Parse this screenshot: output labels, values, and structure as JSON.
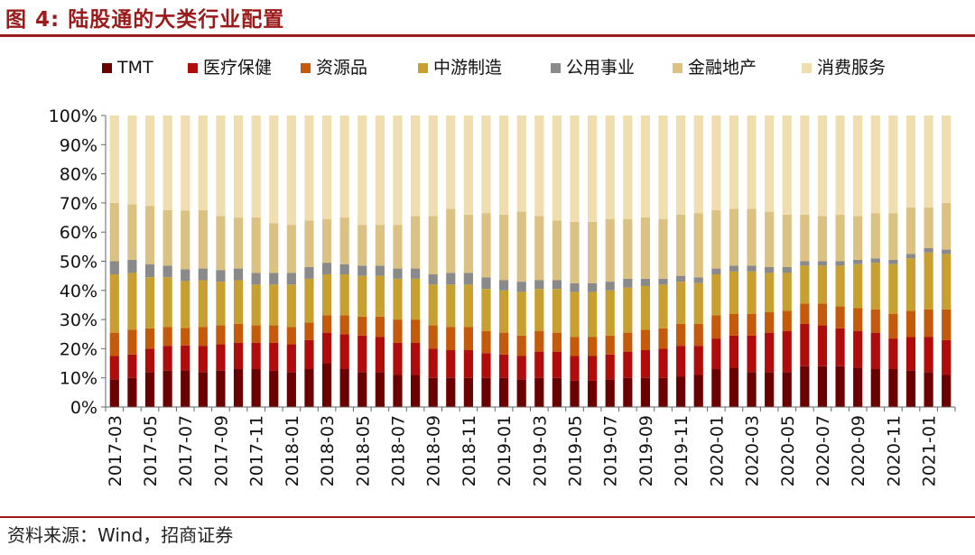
{
  "title": "图 4:  陆股通的大类行业配置",
  "source": "资料来源：Wind，招商证券",
  "chart_data": {
    "type": "bar",
    "stacked": true,
    "percent": true,
    "ylim": [
      0,
      100
    ],
    "yticks": [
      "0%",
      "10%",
      "20%",
      "30%",
      "40%",
      "50%",
      "60%",
      "70%",
      "80%",
      "90%",
      "100%"
    ],
    "legend_position": "top",
    "categories": [
      "2017-03",
      "2017-04",
      "2017-05",
      "2017-06",
      "2017-07",
      "2017-08",
      "2017-09",
      "2017-10",
      "2017-11",
      "2017-12",
      "2018-01",
      "2018-02",
      "2018-03",
      "2018-04",
      "2018-05",
      "2018-06",
      "2018-07",
      "2018-08",
      "2018-09",
      "2018-10",
      "2018-11",
      "2018-12",
      "2019-01",
      "2019-02",
      "2019-03",
      "2019-04",
      "2019-05",
      "2019-06",
      "2019-07",
      "2019-08",
      "2019-09",
      "2019-10",
      "2019-11",
      "2019-12",
      "2020-01",
      "2020-02",
      "2020-03",
      "2020-04",
      "2020-05",
      "2020-06",
      "2020-07",
      "2020-08",
      "2020-09",
      "2020-10",
      "2020-11",
      "2020-12",
      "2021-01",
      "2021-02"
    ],
    "xtick_labels": [
      "2017-03",
      "",
      "2017-05",
      "",
      "2017-07",
      "",
      "2017-09",
      "",
      "2017-11",
      "",
      "2018-01",
      "",
      "2018-03",
      "",
      "2018-05",
      "",
      "2018-07",
      "",
      "2018-09",
      "",
      "2018-11",
      "",
      "2019-01",
      "",
      "2019-03",
      "",
      "2019-05",
      "",
      "2019-07",
      "",
      "2019-09",
      "",
      "2019-11",
      "",
      "2020-01",
      "",
      "2020-03",
      "",
      "2020-05",
      "",
      "2020-07",
      "",
      "2020-09",
      "",
      "2020-11",
      "",
      "2021-01",
      ""
    ],
    "series": [
      {
        "name": "TMT",
        "color": "#6b0000",
        "values": [
          9.5,
          10,
          12,
          12.5,
          12.5,
          12,
          12.5,
          13,
          13,
          12.5,
          12,
          13,
          15,
          13,
          12,
          12,
          11,
          11,
          10,
          10,
          10,
          10,
          10,
          9.5,
          10,
          10,
          9,
          9,
          9.5,
          10,
          10,
          10,
          10.5,
          11,
          13,
          13.5,
          12,
          12,
          12,
          14,
          14,
          14,
          13.5,
          13,
          13,
          12.5,
          12,
          11
        ]
      },
      {
        "name": "医疗保健",
        "color": "#b00c0c",
        "values": [
          8,
          8,
          8,
          8.5,
          8.5,
          9,
          9,
          9,
          9,
          9.5,
          9.5,
          10,
          10.5,
          12,
          12.5,
          12,
          11,
          11,
          10,
          9.5,
          9.5,
          8.5,
          8,
          8,
          9,
          9,
          8.5,
          8.5,
          8.5,
          9,
          9.5,
          10,
          10.5,
          10,
          10.5,
          11,
          12.5,
          13.5,
          14,
          14.5,
          14,
          13,
          12.5,
          12.5,
          10.5,
          11.5,
          12,
          12
        ]
      },
      {
        "name": "资源品",
        "color": "#c55a0a",
        "values": [
          8,
          8.5,
          7,
          6.5,
          6,
          6.5,
          6.5,
          6.5,
          6,
          6,
          6,
          6,
          6,
          6.5,
          6.5,
          7,
          8,
          8,
          8,
          8,
          8,
          7.5,
          7.5,
          7,
          7,
          6.5,
          6.5,
          6.5,
          6.5,
          6.5,
          7,
          7,
          7.5,
          7.5,
          8,
          7.5,
          7.5,
          7,
          7,
          7,
          7.5,
          7.5,
          8,
          8,
          8.5,
          9,
          9.5,
          10.5
        ]
      },
      {
        "name": "中游制造",
        "color": "#c8a030",
        "values": [
          20,
          19.5,
          17.5,
          17,
          16,
          16,
          15,
          15,
          14,
          14,
          14.5,
          15,
          14,
          14,
          14,
          14,
          14,
          14,
          14,
          14.5,
          14.5,
          14.5,
          14.5,
          15,
          14.5,
          15,
          15.5,
          15.5,
          15.5,
          15.5,
          15,
          15,
          14.5,
          14,
          14,
          14.5,
          14.5,
          13.5,
          13,
          13,
          13,
          14,
          15,
          16,
          17,
          18,
          19.5,
          19
        ]
      },
      {
        "name": "公用事业",
        "color": "#8a8a8a",
        "values": [
          4.5,
          4.5,
          4.5,
          4,
          4,
          4,
          4,
          4,
          4,
          4,
          4,
          4,
          4,
          3.5,
          3.5,
          3.5,
          3.5,
          3.5,
          3.5,
          4,
          4,
          4,
          3.5,
          3.5,
          3,
          3,
          3,
          3,
          3,
          3,
          2.5,
          2,
          2,
          2,
          2,
          2,
          2,
          2,
          2,
          1.5,
          1.5,
          1.5,
          1.5,
          1.5,
          1.5,
          1.5,
          1.5,
          1.5
        ]
      },
      {
        "name": "金融地产",
        "color": "#dcc282",
        "values": [
          20,
          19,
          20,
          19,
          20,
          20,
          18.5,
          17.5,
          19,
          17,
          16.5,
          16,
          15,
          16,
          14,
          14,
          15,
          18,
          20,
          22,
          20,
          22,
          22.5,
          24,
          22,
          20.5,
          21,
          21,
          21.5,
          20.5,
          21,
          20.5,
          21,
          22,
          20,
          19.5,
          19.5,
          19,
          18,
          16,
          15.5,
          16,
          15,
          15.5,
          16,
          16,
          14,
          16
        ]
      },
      {
        "name": "消费服务",
        "color": "#f0deb0",
        "values": [
          30,
          30.5,
          31,
          32.5,
          32.5,
          32.5,
          34.5,
          35,
          35,
          37,
          37.5,
          36,
          35.5,
          35,
          37.5,
          37.5,
          37.5,
          34.5,
          34.5,
          32,
          34,
          33.5,
          34,
          33,
          34.5,
          36,
          36.5,
          36.5,
          35.5,
          35.5,
          35,
          35.5,
          34,
          33.5,
          32.5,
          32,
          32,
          33,
          34,
          34,
          34.5,
          34,
          34.5,
          33.5,
          33.5,
          31.5,
          31.5,
          30
        ]
      }
    ]
  }
}
